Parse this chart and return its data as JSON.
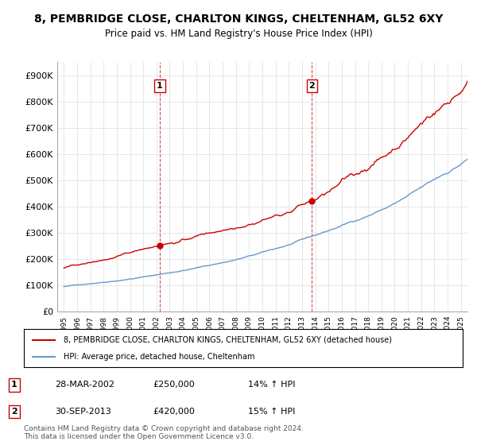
{
  "title": "8, PEMBRIDGE CLOSE, CHARLTON KINGS, CHELTENHAM, GL52 6XY",
  "subtitle": "Price paid vs. HM Land Registry's House Price Index (HPI)",
  "ylim": [
    0,
    900000
  ],
  "yticks": [
    0,
    100000,
    200000,
    300000,
    400000,
    500000,
    600000,
    700000,
    800000,
    900000
  ],
  "ytick_labels": [
    "£0",
    "£100K",
    "£200K",
    "£300K",
    "£400K",
    "£500K",
    "£600K",
    "£700K",
    "£800K",
    "£900K"
  ],
  "red_color": "#cc0000",
  "blue_color": "#6699cc",
  "marker1_date_idx": 7.25,
  "marker1_value": 250000,
  "marker2_date_idx": 18.75,
  "marker2_value": 420000,
  "marker1_label": "1",
  "marker2_label": "2",
  "vline_color": "#cc0000",
  "legend_label_red": "8, PEMBRIDGE CLOSE, CHARLTON KINGS, CHELTENHAM, GL52 6XY (detached house)",
  "legend_label_blue": "HPI: Average price, detached house, Cheltenham",
  "table_row1": [
    "1",
    "28-MAR-2002",
    "£250,000",
    "14% ↑ HPI"
  ],
  "table_row2": [
    "2",
    "30-SEP-2013",
    "£420,000",
    "15% ↑ HPI"
  ],
  "footnote1": "Contains HM Land Registry data © Crown copyright and database right 2024.",
  "footnote2": "This data is licensed under the Open Government Licence v3.0.",
  "background_color": "#ffffff",
  "grid_color": "#dddddd",
  "title_fontsize": 10,
  "subtitle_fontsize": 9
}
